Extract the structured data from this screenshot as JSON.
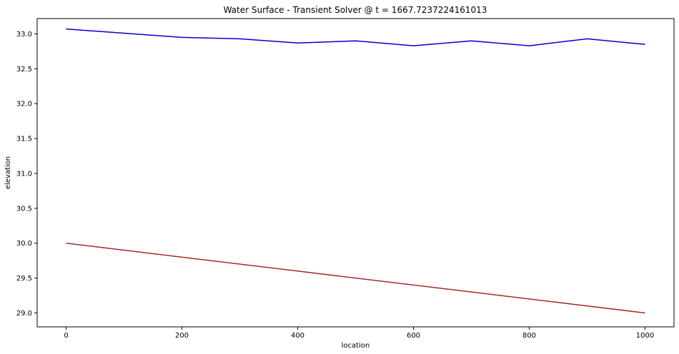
{
  "chart_data": {
    "type": "line",
    "title": "Water Surface - Transient Solver @ t = 1667.7237224161013",
    "xlabel": "location",
    "ylabel": "elevation",
    "xlim": [
      -50,
      1050
    ],
    "ylim": [
      28.8,
      33.22
    ],
    "xticks": [
      0,
      200,
      400,
      600,
      800,
      1000
    ],
    "xtick_labels": [
      "0",
      "200",
      "400",
      "600",
      "800",
      "1000"
    ],
    "yticks": [
      29.0,
      29.5,
      30.0,
      30.5,
      31.0,
      31.5,
      32.0,
      32.5,
      33.0
    ],
    "ytick_labels": [
      "29.0",
      "29.5",
      "30.0",
      "30.5",
      "31.0",
      "31.5",
      "32.0",
      "32.5",
      "33.0"
    ],
    "grid": false,
    "series": [
      {
        "color": "#0000cc",
        "x": [
          0,
          200,
          300,
          400,
          500,
          600,
          700,
          800,
          900,
          1000
        ],
        "y": [
          33.07,
          32.95,
          32.93,
          32.87,
          32.9,
          32.83,
          32.9,
          32.83,
          32.93,
          32.85
        ]
      },
      {
        "color": "#a52a2a",
        "x": [
          0,
          1000
        ],
        "y": [
          30.0,
          29.0
        ]
      }
    ]
  }
}
